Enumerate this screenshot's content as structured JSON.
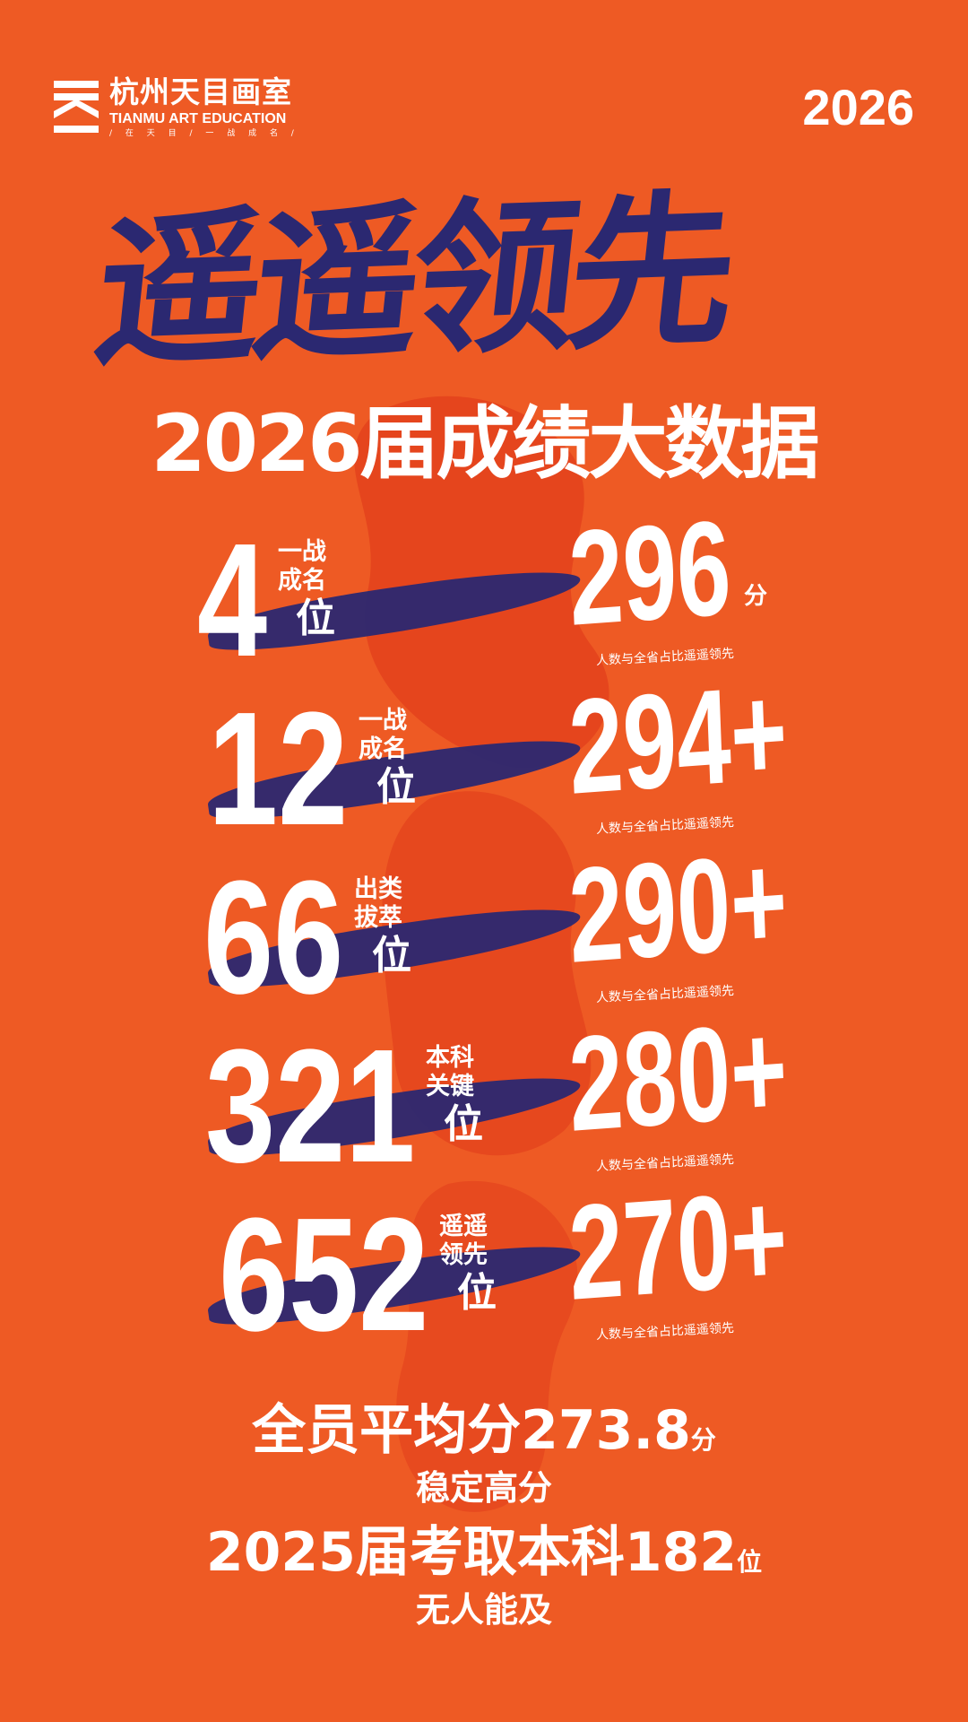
{
  "colors": {
    "background": "#ee5a24",
    "navy": "#2b2871",
    "white": "#ffffff"
  },
  "logo": {
    "icon": "tianmu-logo-icon",
    "name_cn": "杭州天目画室",
    "name_en": "TIANMU ART EDUCATION",
    "tagline": "/ 在 天 目 / 一 战 成 名 /"
  },
  "year": "2026",
  "headline": "遥遥领先",
  "subtitle": "2026届成绩大数据",
  "background_char": "战",
  "rows": [
    {
      "count": "4",
      "label_top": "一战",
      "label_mid": "成名",
      "label_big": "位",
      "score": "296",
      "unit": "分",
      "note": "人数与全省占比遥遥领先"
    },
    {
      "count": "12",
      "label_top": "一战",
      "label_mid": "成名",
      "label_big": "位",
      "score": "294+",
      "note": "人数与全省占比遥遥领先"
    },
    {
      "count": "66",
      "label_top": "出类",
      "label_mid": "拔萃",
      "label_big": "位",
      "score": "290+",
      "note": "人数与全省占比遥遥领先"
    },
    {
      "count": "321",
      "label_top": "本科",
      "label_mid": "关键",
      "label_big": "位",
      "score": "280+",
      "note": "人数与全省占比遥遥领先"
    },
    {
      "count": "652",
      "label_top": "遥遥",
      "label_mid": "领先",
      "label_big": "位",
      "score": "270+",
      "note": "人数与全省占比遥遥领先"
    }
  ],
  "footer": {
    "avg_prefix": "全员平均分",
    "avg_value": "273.8",
    "avg_unit": "分",
    "avg_note": "稳定高分",
    "past_prefix": "2025届考取本科",
    "past_value": "182",
    "past_unit": "位",
    "past_note": "无人能及"
  }
}
